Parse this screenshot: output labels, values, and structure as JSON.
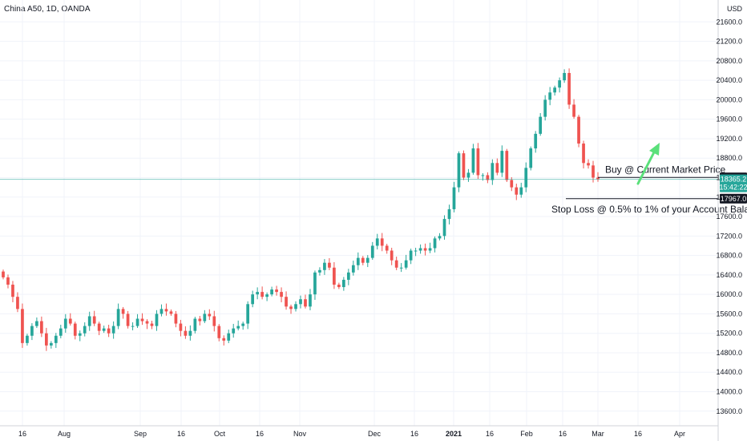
{
  "header": {
    "symbol_text": "China A50, 1D, OANDA"
  },
  "chart_data": {
    "type": "candlestick",
    "currency": "USD",
    "y_ticks": [
      13600,
      14000,
      14400,
      14800,
      15200,
      15600,
      16000,
      16400,
      16800,
      17200,
      17600,
      18000,
      18400,
      18800,
      19200,
      19600,
      20000,
      20400,
      20800,
      21200,
      21600,
      22000
    ],
    "y_tick_labels": [
      "13600.0",
      "14000.0",
      "14400.0",
      "14800.0",
      "15200.0",
      "15600.0",
      "16000.0",
      "16400.0",
      "16800.0",
      "17200.0",
      "17600.0",
      "18000.0",
      "18400.0",
      "18800.0",
      "19200.0",
      "19600.0",
      "20000.0",
      "20400.0",
      "20800.0",
      "21200.0",
      "21600.0",
      "22000.0"
    ],
    "ylim": [
      13300,
      22050
    ],
    "x_labels": [
      {
        "text": "16",
        "bold": false
      },
      {
        "text": "Aug",
        "bold": false
      },
      {
        "text": "Sep",
        "bold": false
      },
      {
        "text": "16",
        "bold": false
      },
      {
        "text": "Oct",
        "bold": false
      },
      {
        "text": "16",
        "bold": false
      },
      {
        "text": "Nov",
        "bold": false
      },
      {
        "text": "Dec",
        "bold": false
      },
      {
        "text": "16",
        "bold": false
      },
      {
        "text": "2021",
        "bold": true
      },
      {
        "text": "16",
        "bold": false
      },
      {
        "text": "Feb",
        "bold": false
      },
      {
        "text": "16",
        "bold": false
      },
      {
        "text": "Mar",
        "bold": false
      },
      {
        "text": "16",
        "bold": false
      },
      {
        "text": "Apr",
        "bold": false
      }
    ],
    "closes": [
      16350,
      16200,
      15950,
      15700,
      15000,
      15150,
      15350,
      15450,
      15200,
      14950,
      15000,
      15150,
      15300,
      15500,
      15400,
      15150,
      15200,
      15350,
      15550,
      15400,
      15250,
      15300,
      15200,
      15350,
      15700,
      15600,
      15350,
      15350,
      15500,
      15450,
      15400,
      15350,
      15600,
      15700,
      15650,
      15600,
      15400,
      15250,
      15150,
      15250,
      15500,
      15450,
      15600,
      15550,
      15350,
      15100,
      15050,
      15200,
      15300,
      15350,
      15400,
      15800,
      16000,
      16050,
      15950,
      16000,
      16100,
      16050,
      15950,
      15750,
      15700,
      15800,
      15900,
      15750,
      16000,
      16450,
      16500,
      16650,
      16550,
      16200,
      16150,
      16300,
      16450,
      16600,
      16750,
      16650,
      16750,
      17000,
      17150,
      17000,
      16900,
      16700,
      16550,
      16550,
      16700,
      16900,
      16900,
      16950,
      16900,
      16950,
      17150,
      17200,
      17550,
      17750,
      18200,
      18900,
      18400,
      18500,
      19000,
      18450,
      18450,
      18350,
      18700,
      18500,
      18950,
      18350,
      18200,
      18050,
      18200,
      18600,
      19000,
      19300,
      19650,
      20000,
      20150,
      20250,
      20400,
      20550,
      19900,
      19650,
      19100,
      18700,
      18650,
      18400,
      18365
    ],
    "current_price": {
      "value": 18365.2,
      "label": "18365.2",
      "countdown": "15:42:22",
      "color": "#26a69a"
    },
    "buy_line": {
      "value": 18403.9,
      "label": "18403.9"
    },
    "stop_line": {
      "value": 17967.0,
      "label": "17967.0"
    },
    "annotations": {
      "buy_text": "Buy @ Current Market Price",
      "stop_text": "Stop Loss @ 0.5% to 1% of your Account Bala"
    },
    "colors": {
      "up": "#26a69a",
      "down": "#ef5350",
      "arrow": "#5ae07a",
      "text": "#131722"
    }
  }
}
